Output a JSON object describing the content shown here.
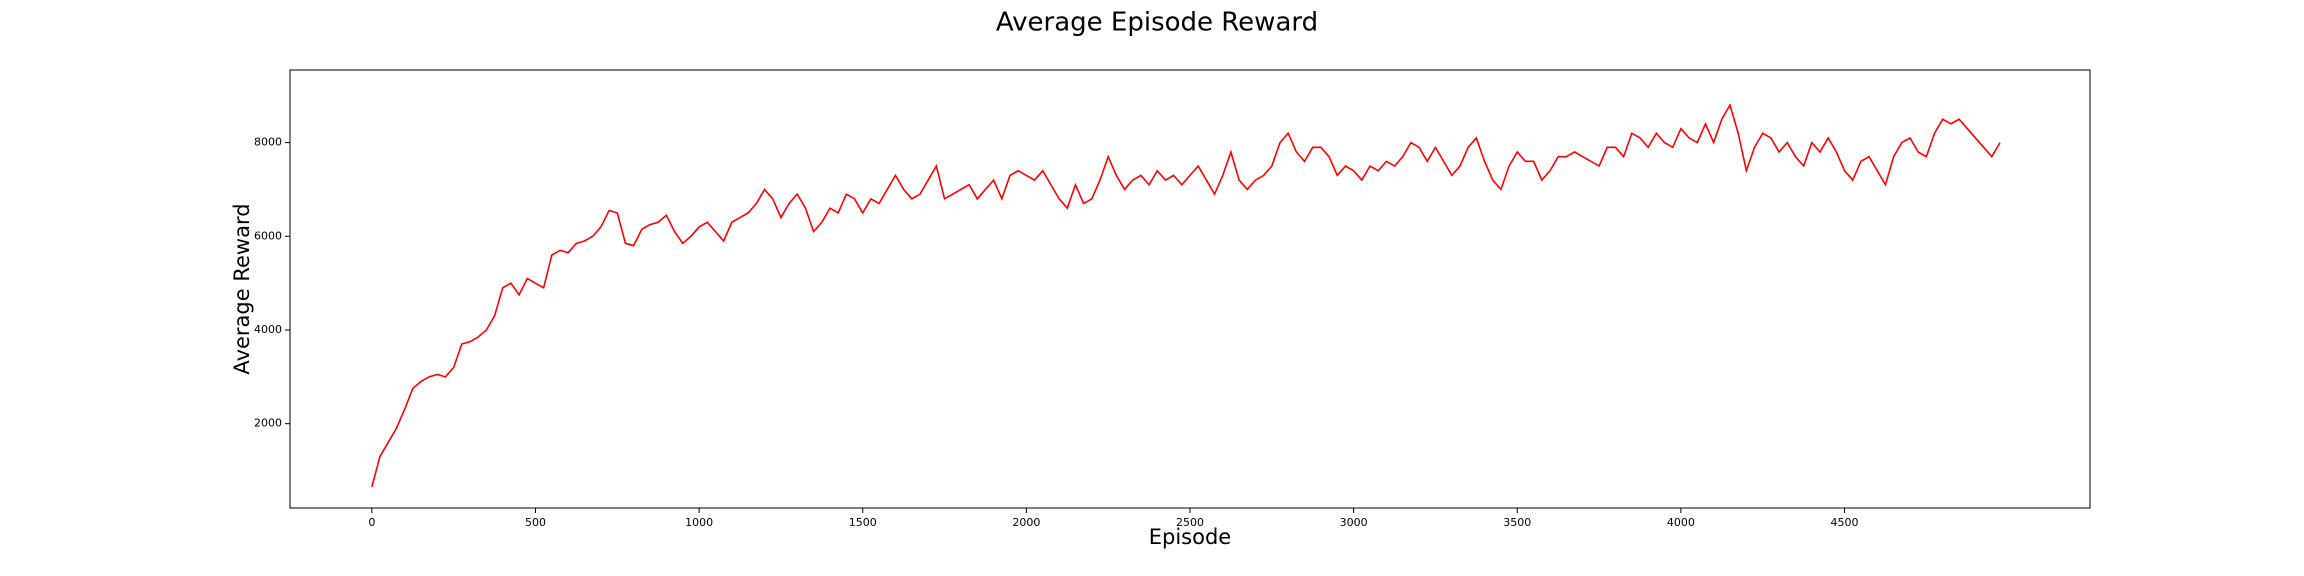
{
  "chart_data": {
    "type": "line",
    "title": "Average Episode Reward",
    "x_label": "Episode",
    "y_label": "Average Reward",
    "x": [
      0,
      25,
      50,
      75,
      100,
      125,
      150,
      175,
      200,
      225,
      250,
      275,
      300,
      325,
      350,
      375,
      400,
      425,
      450,
      475,
      500,
      525,
      550,
      575,
      600,
      625,
      650,
      675,
      700,
      725,
      750,
      775,
      800,
      825,
      850,
      875,
      900,
      925,
      950,
      975,
      1000,
      1025,
      1050,
      1075,
      1100,
      1125,
      1150,
      1175,
      1200,
      1225,
      1250,
      1275,
      1300,
      1325,
      1350,
      1375,
      1400,
      1425,
      1450,
      1475,
      1500,
      1525,
      1550,
      1575,
      1600,
      1625,
      1650,
      1675,
      1700,
      1725,
      1750,
      1775,
      1800,
      1825,
      1850,
      1875,
      1900,
      1925,
      1950,
      1975,
      2000,
      2025,
      2050,
      2075,
      2100,
      2125,
      2150,
      2175,
      2200,
      2225,
      2250,
      2275,
      2300,
      2325,
      2350,
      2375,
      2400,
      2425,
      2450,
      2475,
      2500,
      2525,
      2550,
      2575,
      2600,
      2625,
      2650,
      2675,
      2700,
      2725,
      2750,
      2775,
      2800,
      2825,
      2850,
      2875,
      2900,
      2925,
      2950,
      2975,
      3000,
      3025,
      3050,
      3075,
      3100,
      3125,
      3150,
      3175,
      3200,
      3225,
      3250,
      3275,
      3300,
      3325,
      3350,
      3375,
      3400,
      3425,
      3450,
      3475,
      3500,
      3525,
      3550,
      3575,
      3600,
      3625,
      3650,
      3675,
      3700,
      3725,
      3750,
      3775,
      3800,
      3825,
      3850,
      3875,
      3900,
      3925,
      3950,
      3975,
      4000,
      4025,
      4050,
      4075,
      4100,
      4125,
      4150,
      4175,
      4200,
      4225,
      4250,
      4275,
      4300,
      4325,
      4350,
      4375,
      4400,
      4425,
      4450,
      4475,
      4500,
      4525,
      4550,
      4575,
      4600,
      4625,
      4650,
      4675,
      4700,
      4725,
      4750,
      4775,
      4800,
      4825,
      4850,
      4875,
      4900,
      4925,
      4950,
      4975
    ],
    "series": [
      {
        "name": "Average Reward",
        "color": "#ff0000",
        "values": [
          650,
          1300,
          1600,
          1900,
          2300,
          2750,
          2900,
          3000,
          3050,
          3000,
          3200,
          3700,
          3750,
          3850,
          4000,
          4300,
          4900,
          5000,
          4750,
          5100,
          5000,
          4900,
          5600,
          5700,
          5650,
          5850,
          5900,
          6000,
          6200,
          6550,
          6500,
          5850,
          5800,
          6150,
          6250,
          6300,
          6450,
          6100,
          5850,
          6000,
          6200,
          6300,
          6100,
          5900,
          6300,
          6400,
          6500,
          6700,
          7000,
          6800,
          6400,
          6700,
          6900,
          6600,
          6100,
          6300,
          6600,
          6500,
          6900,
          6800,
          6500,
          6800,
          6700,
          7000,
          7300,
          7000,
          6800,
          6900,
          7200,
          7500,
          6800,
          6900,
          7000,
          7100,
          6800,
          7000,
          7200,
          6800,
          7300,
          7400,
          7300,
          7200,
          7400,
          7100,
          6800,
          6600,
          7100,
          6700,
          6800,
          7200,
          7700,
          7300,
          7000,
          7200,
          7300,
          7100,
          7400,
          7200,
          7300,
          7100,
          7300,
          7500,
          7200,
          6900,
          7300,
          7800,
          7200,
          7000,
          7200,
          7300,
          7500,
          8000,
          8200,
          7800,
          7600,
          7900,
          7900,
          7700,
          7300,
          7500,
          7400,
          7200,
          7500,
          7400,
          7600,
          7500,
          7700,
          8000,
          7900,
          7600,
          7900,
          7600,
          7300,
          7500,
          7900,
          8100,
          7600,
          7200,
          7000,
          7500,
          7800,
          7600,
          7600,
          7200,
          7400,
          7700,
          7700,
          7800,
          7700,
          7600,
          7500,
          7900,
          7900,
          7700,
          8200,
          8100,
          7900,
          8200,
          8000,
          7900,
          8300,
          8100,
          8000,
          8400,
          8000,
          8500,
          8800,
          8200,
          7400,
          7900,
          8200,
          8100,
          7800,
          8000,
          7700,
          7500,
          8000,
          7800,
          8100,
          7800,
          7400,
          7200,
          7600,
          7700,
          7400,
          7100,
          7700,
          8000,
          8100,
          7800,
          7700,
          8200,
          8500,
          8400,
          8500,
          8300,
          8100,
          7900,
          7700,
          8000
        ]
      }
    ],
    "xlim": [
      -250,
      5250
    ],
    "ylim": [
      200,
      9550
    ],
    "xticks": [
      0,
      500,
      1000,
      1500,
      2000,
      2500,
      3000,
      3500,
      4000,
      4500
    ],
    "yticks": [
      2000,
      4000,
      6000,
      8000
    ]
  }
}
